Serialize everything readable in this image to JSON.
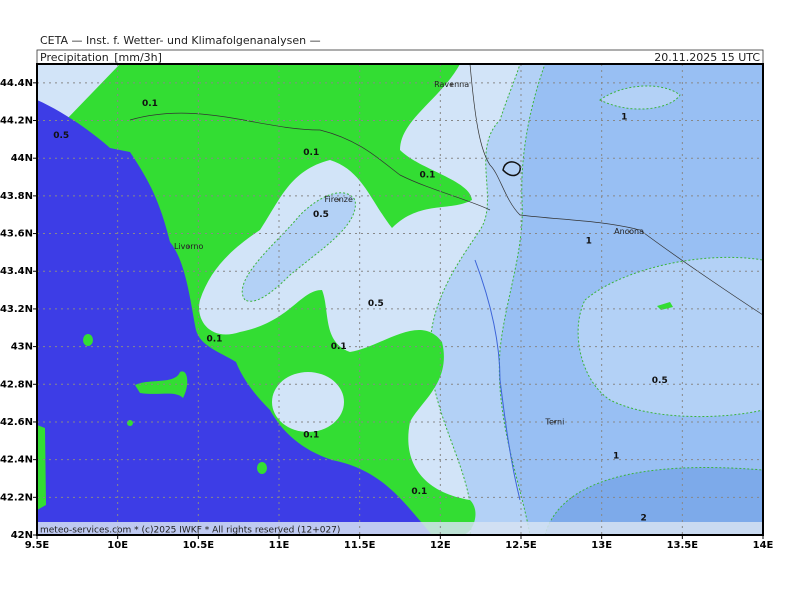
{
  "header": {
    "institute": "CETA — Inst. f. Wetter- und Klimafolgenanalysen —",
    "variable": "Precipitation_[mm/3h]",
    "datetime": "20.11.2025 15 UTC"
  },
  "footer": "meteo-services.com * (c)2025 IWKF * All rights reserved (12+027)",
  "map": {
    "xlim": [
      9.5,
      14
    ],
    "ylim": [
      42,
      44.5
    ],
    "xticks": [
      {
        "value": 9.5,
        "label": "9.5E"
      },
      {
        "value": 10,
        "label": "10E"
      },
      {
        "value": 10.5,
        "label": "10.5E"
      },
      {
        "value": 11,
        "label": "11E"
      },
      {
        "value": 11.5,
        "label": "11.5E"
      },
      {
        "value": 12,
        "label": "12E"
      },
      {
        "value": 12.5,
        "label": "12.5E"
      },
      {
        "value": 13,
        "label": "13E"
      },
      {
        "value": 13.5,
        "label": "13.5E"
      },
      {
        "value": 14,
        "label": "14E"
      }
    ],
    "yticks": [
      {
        "value": 42,
        "label": "42N"
      },
      {
        "value": 42.2,
        "label": "42.2N"
      },
      {
        "value": 42.4,
        "label": "42.4N"
      },
      {
        "value": 42.6,
        "label": "42.6N"
      },
      {
        "value": 42.8,
        "label": "42.8N"
      },
      {
        "value": 43,
        "label": "43N"
      },
      {
        "value": 43.2,
        "label": "43.2N"
      },
      {
        "value": 43.4,
        "label": "43.4N"
      },
      {
        "value": 43.6,
        "label": "43.6N"
      },
      {
        "value": 43.8,
        "label": "43.8N"
      },
      {
        "value": 44,
        "label": "44N"
      },
      {
        "value": 44.2,
        "label": "44.2N"
      },
      {
        "value": 44.4,
        "label": "44.4N"
      }
    ],
    "cities": [
      {
        "name": "Ravenna",
        "lon": 12.07,
        "lat": 44.39
      },
      {
        "name": "Firenze",
        "lon": 11.37,
        "lat": 43.78
      },
      {
        "name": "Livorno",
        "lon": 10.44,
        "lat": 43.53
      },
      {
        "name": "Ancona",
        "lon": 13.17,
        "lat": 43.61
      },
      {
        "name": "Terni",
        "lon": 12.71,
        "lat": 42.6
      }
    ],
    "contour_labels": [
      {
        "label": "0.1",
        "lon": 10.2,
        "lat": 44.29
      },
      {
        "label": "0.5",
        "lon": 9.65,
        "lat": 44.12
      },
      {
        "label": "0.1",
        "lon": 11.2,
        "lat": 44.03
      },
      {
        "label": "0.1",
        "lon": 11.92,
        "lat": 43.91
      },
      {
        "label": "0.5",
        "lon": 11.26,
        "lat": 43.7
      },
      {
        "label": "1",
        "lon": 13.14,
        "lat": 44.22
      },
      {
        "label": "1",
        "lon": 12.92,
        "lat": 43.56
      },
      {
        "label": "0.5",
        "lon": 11.6,
        "lat": 43.23
      },
      {
        "label": "0.1",
        "lon": 10.6,
        "lat": 43.04
      },
      {
        "label": "0.1",
        "lon": 11.37,
        "lat": 43.0
      },
      {
        "label": "0.5",
        "lon": 13.36,
        "lat": 42.82
      },
      {
        "label": "0.1",
        "lon": 11.2,
        "lat": 42.53
      },
      {
        "label": "1",
        "lon": 13.09,
        "lat": 42.42
      },
      {
        "label": "0.1",
        "lon": 11.87,
        "lat": 42.23
      },
      {
        "label": "2",
        "lon": 13.26,
        "lat": 42.09
      }
    ]
  }
}
